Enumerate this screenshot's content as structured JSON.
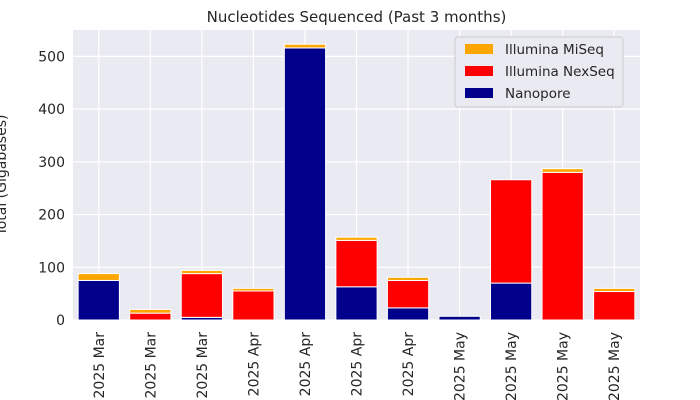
{
  "chart_data": {
    "type": "bar",
    "stacked": true,
    "title": "Nucleotides Sequenced (Past 3 months)",
    "ylabel": "Total (Gigabases)",
    "xlabel": "",
    "categories": [
      "2025 Mar",
      "2025 Mar",
      "2025 Mar",
      "2025 Apr",
      "2025 Apr",
      "2025 Apr",
      "2025 Apr",
      "2025 May",
      "2025 May",
      "2025 May",
      "2025 May"
    ],
    "series": [
      {
        "name": "Nanopore",
        "color": "#00008b",
        "values": [
          75,
          0,
          5,
          0,
          516,
          63,
          23,
          7,
          70,
          0,
          0
        ]
      },
      {
        "name": "Illumina NexSeq",
        "color": "#ff0000",
        "values": [
          0,
          13,
          83,
          55,
          0,
          88,
          52,
          0,
          196,
          280,
          54
        ]
      },
      {
        "name": "Illumina MiSeq",
        "color": "#ffa500",
        "values": [
          13,
          7,
          6,
          5,
          7,
          6,
          6,
          0,
          0,
          7,
          6
        ]
      }
    ],
    "legend_order": [
      "Illumina MiSeq",
      "Illumina NexSeq",
      "Nanopore"
    ],
    "legend_position": "top-right",
    "ylim": [
      0,
      550
    ],
    "yticks": [
      0,
      100,
      200,
      300,
      400,
      500
    ],
    "grid": true,
    "background": "#eaeaf2"
  }
}
